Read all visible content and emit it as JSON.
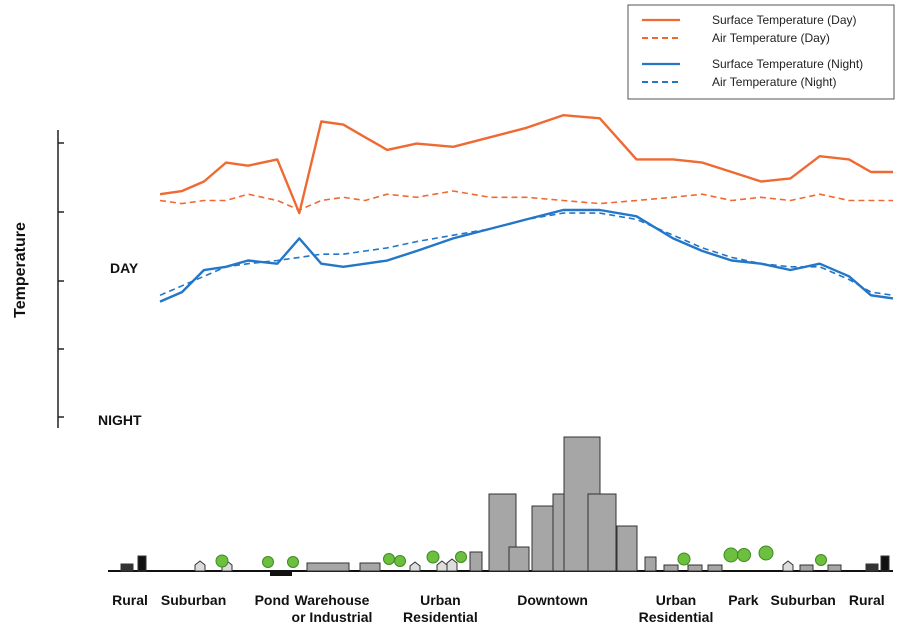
{
  "chart_data": {
    "type": "line",
    "title": "",
    "ylabel": "Temperature",
    "xlabel": "",
    "x": [
      0,
      0.03,
      0.06,
      0.09,
      0.12,
      0.16,
      0.19,
      0.22,
      0.25,
      0.28,
      0.31,
      0.35,
      0.4,
      0.45,
      0.5,
      0.55,
      0.6,
      0.65,
      0.7,
      0.74,
      0.78,
      0.82,
      0.86,
      0.9,
      0.94,
      0.97,
      1.0
    ],
    "xlim": [
      0,
      1
    ],
    "ylim": [
      0,
      1
    ],
    "grid": false,
    "legend_position": "top-right",
    "row_labels": [
      "DAY",
      "NIGHT"
    ],
    "categories": [
      {
        "label": "Rural",
        "label2": "",
        "x": 0.0
      },
      {
        "label": "Suburban",
        "label2": "",
        "x": 0.085
      },
      {
        "label": "Pond",
        "label2": "",
        "x": 0.19
      },
      {
        "label": "Warehouse",
        "label2": "or Industrial",
        "x": 0.27
      },
      {
        "label": "Urban",
        "label2": "Residential",
        "x": 0.415
      },
      {
        "label": "Downtown",
        "label2": "",
        "x": 0.565
      },
      {
        "label": "Urban",
        "label2": "Residential",
        "x": 0.73
      },
      {
        "label": "Park",
        "label2": "",
        "x": 0.82
      },
      {
        "label": "Suburban",
        "label2": "",
        "x": 0.9
      },
      {
        "label": "Rural",
        "label2": "",
        "x": 0.985
      }
    ],
    "series": [
      {
        "name": "Surface Temperature (Day)",
        "color": "#ef6a32",
        "dash": "solid",
        "values": [
          0.74,
          0.75,
          0.78,
          0.84,
          0.83,
          0.85,
          0.68,
          0.97,
          0.96,
          0.92,
          0.88,
          0.9,
          0.89,
          0.92,
          0.95,
          0.99,
          0.98,
          0.85,
          0.85,
          0.84,
          0.81,
          0.78,
          0.79,
          0.86,
          0.85,
          0.81,
          0.81
        ]
      },
      {
        "name": "Air Temperature  (Day)",
        "color": "#ef6a32",
        "dash": "dashed",
        "values": [
          0.72,
          0.71,
          0.72,
          0.72,
          0.74,
          0.72,
          0.69,
          0.72,
          0.73,
          0.72,
          0.74,
          0.73,
          0.75,
          0.73,
          0.73,
          0.72,
          0.71,
          0.72,
          0.73,
          0.74,
          0.72,
          0.73,
          0.72,
          0.74,
          0.72,
          0.72,
          0.72
        ]
      },
      {
        "name": "Surface Temperature (Night)",
        "color": "#2376c8",
        "dash": "solid",
        "values": [
          0.4,
          0.43,
          0.5,
          0.51,
          0.53,
          0.52,
          0.6,
          0.52,
          0.51,
          0.52,
          0.53,
          0.56,
          0.6,
          0.63,
          0.66,
          0.69,
          0.69,
          0.67,
          0.6,
          0.56,
          0.53,
          0.52,
          0.5,
          0.52,
          0.48,
          0.42,
          0.41
        ]
      },
      {
        "name": "Air Temperature (Night)",
        "color": "#2376c8",
        "dash": "dashed",
        "values": [
          0.42,
          0.45,
          0.48,
          0.51,
          0.52,
          0.53,
          0.54,
          0.55,
          0.55,
          0.56,
          0.57,
          0.59,
          0.61,
          0.63,
          0.66,
          0.68,
          0.68,
          0.66,
          0.61,
          0.57,
          0.54,
          0.52,
          0.51,
          0.51,
          0.47,
          0.43,
          0.42
        ]
      }
    ]
  }
}
